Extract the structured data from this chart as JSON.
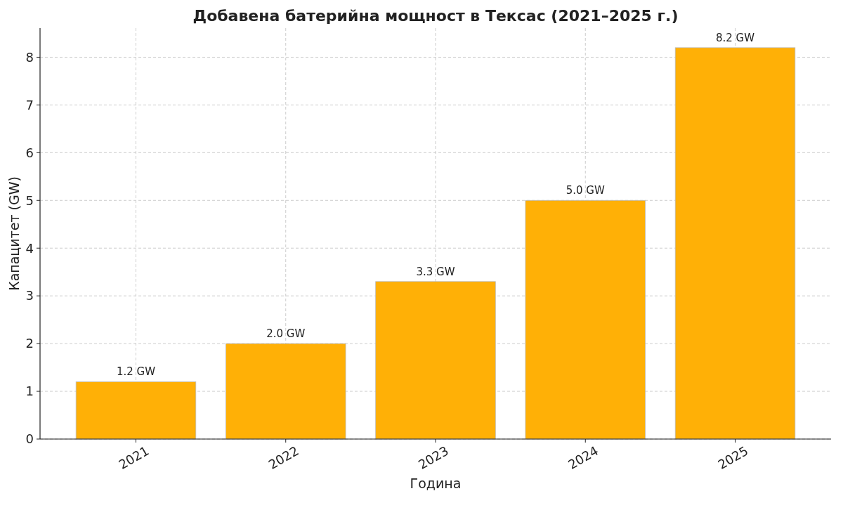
{
  "chart_data": {
    "type": "bar",
    "title": "Добавена батерийна мощност в Тексас (2021–2025 г.)",
    "xlabel": "Година",
    "ylabel": "Капацитет (GW)",
    "categories": [
      "2021",
      "2022",
      "2023",
      "2024",
      "2025"
    ],
    "values": [
      1.2,
      2.0,
      3.3,
      5.0,
      8.2
    ],
    "value_labels": [
      "1.2 GW",
      "2.0 GW",
      "3.3 GW",
      "5.0 GW",
      "8.2 GW"
    ],
    "color": "#ffb006",
    "ylim": [
      0,
      8.61
    ],
    "yticks": [
      0,
      1,
      2,
      3,
      4,
      5,
      6,
      7,
      8
    ],
    "grid": true
  }
}
